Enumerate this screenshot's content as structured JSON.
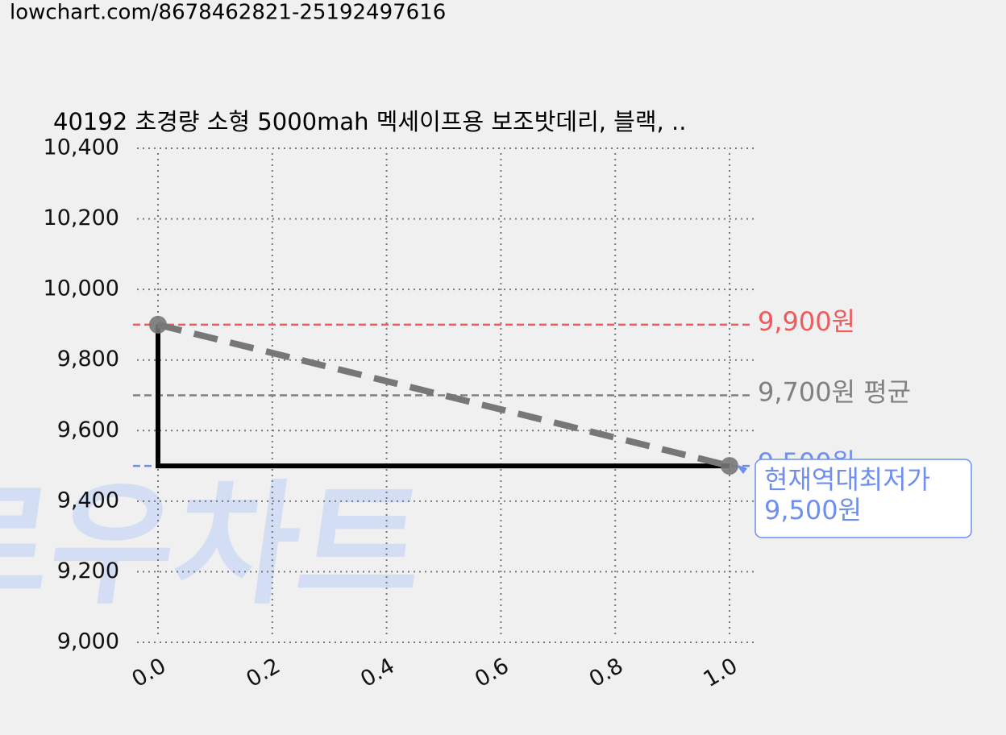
{
  "url": "lowchart.com/8678462821-25192497616",
  "watermark": "로우차트",
  "chart_data": {
    "type": "line",
    "title": "40192 초경량 소형 5000mah 멕세이프용 보조밧데리, 블랙, ..",
    "xlim": [
      0,
      1
    ],
    "ylim": [
      9000,
      10400
    ],
    "xticks": [
      {
        "value": 0,
        "label": "0.0"
      },
      {
        "value": 0.2,
        "label": "0.2"
      },
      {
        "value": 0.4,
        "label": "0.4"
      },
      {
        "value": 0.6,
        "label": "0.6"
      },
      {
        "value": 0.8,
        "label": "0.8"
      },
      {
        "value": 1,
        "label": "1.0"
      }
    ],
    "yticks": [
      {
        "value": 9000,
        "label": "9,000"
      },
      {
        "value": 9200,
        "label": "9,200"
      },
      {
        "value": 9400,
        "label": "9,400"
      },
      {
        "value": 9600,
        "label": "9,600"
      },
      {
        "value": 9800,
        "label": "9,800"
      },
      {
        "value": 10000,
        "label": "10,000"
      },
      {
        "value": 10200,
        "label": "10,200"
      },
      {
        "value": 10400,
        "label": "10,400"
      }
    ],
    "grid": true,
    "series": [
      {
        "color": "#000000",
        "style": "solid",
        "x": [
          0,
          0,
          1
        ],
        "values": [
          9900,
          9500,
          9500
        ]
      },
      {
        "color": "#777777",
        "style": "dashed",
        "markers": true,
        "x": [
          0,
          1
        ],
        "values": [
          9900,
          9500
        ]
      }
    ],
    "hlines": [
      {
        "value": 9900,
        "label": "9,900원",
        "color": "#f05a5a"
      },
      {
        "value": 9700,
        "label": "9,700원 평균",
        "color": "#808080"
      },
      {
        "value": 9500,
        "label": "9,500원",
        "color": "#6e8ff0"
      }
    ],
    "annotation": {
      "lines": [
        "현재역대최저가",
        "9,500원"
      ],
      "x": 1,
      "y": 9500,
      "color": "#6e8ff0"
    }
  }
}
